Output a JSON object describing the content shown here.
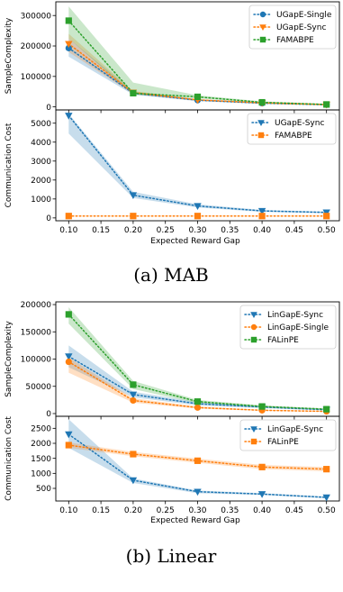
{
  "colors": {
    "blue": "#1f77b4",
    "orange": "#ff7f0e",
    "green": "#2ca02c"
  },
  "figures": [
    {
      "caption": "(a) MAB",
      "xlabel": "Expected Reward Gap",
      "xticks": [
        0.1,
        0.15,
        0.2,
        0.25,
        0.3,
        0.35,
        0.4,
        0.45,
        0.5
      ],
      "xticklabels": [
        "0.10",
        "0.15",
        "0.20",
        "0.25",
        "0.30",
        "0.35",
        "0.40",
        "0.45",
        "0.50"
      ],
      "xlim": [
        0.08,
        0.52
      ]
    },
    {
      "caption": "(b) Linear",
      "xlabel": "Expected Reward Gap",
      "xticks": [
        0.1,
        0.15,
        0.2,
        0.25,
        0.3,
        0.35,
        0.4,
        0.45,
        0.5
      ],
      "xticklabels": [
        "0.10",
        "0.15",
        "0.20",
        "0.25",
        "0.30",
        "0.35",
        "0.40",
        "0.45",
        "0.50"
      ],
      "xlim": [
        0.08,
        0.52
      ]
    }
  ],
  "chart_data": [
    {
      "type": "line",
      "id": "mab-sample",
      "ylabel": "SampleComplexity",
      "ylim": [
        -10000,
        345000
      ],
      "yticks": [
        0,
        100000,
        200000,
        300000
      ],
      "yticklabels": [
        "0",
        "100000",
        "200000",
        "300000"
      ],
      "legend_position": "top-right",
      "x": [
        0.1,
        0.2,
        0.3,
        0.4,
        0.5
      ],
      "series": [
        {
          "name": "UGapE-Single",
          "color": "blue",
          "marker": "circle",
          "values": [
            193000,
            45000,
            22000,
            12000,
            7000
          ],
          "band_low": [
            165000,
            40000,
            19000,
            10000,
            5000
          ],
          "band_high": [
            225000,
            50000,
            25000,
            14000,
            9000
          ]
        },
        {
          "name": "UGapE-Sync",
          "color": "orange",
          "marker": "triangle-down",
          "values": [
            207000,
            47000,
            23000,
            13000,
            7500
          ],
          "band_low": [
            180000,
            42000,
            20000,
            11000,
            5500
          ],
          "band_high": [
            240000,
            52000,
            26000,
            15000,
            9500
          ]
        },
        {
          "name": "FAMABPE",
          "color": "green",
          "marker": "square",
          "values": [
            283000,
            45000,
            33000,
            15000,
            8000
          ],
          "band_low": [
            225000,
            40000,
            28000,
            13000,
            6000
          ],
          "band_high": [
            330000,
            80000,
            38000,
            18000,
            10000
          ]
        }
      ]
    },
    {
      "type": "line",
      "id": "mab-comm",
      "ylabel": "Communication Cost",
      "ylim": [
        -150,
        5700
      ],
      "yticks": [
        0,
        1000,
        2000,
        3000,
        4000,
        5000
      ],
      "yticklabels": [
        "0",
        "1000",
        "2000",
        "3000",
        "4000",
        "5000"
      ],
      "legend_position": "top-right",
      "x": [
        0.1,
        0.2,
        0.3,
        0.4,
        0.5
      ],
      "series": [
        {
          "name": "UGapE-Sync",
          "color": "blue",
          "marker": "triangle-down",
          "values": [
            5400,
            1200,
            630,
            370,
            290
          ],
          "band_low": [
            4450,
            1050,
            550,
            320,
            250
          ],
          "band_high": [
            5500,
            1380,
            720,
            420,
            330
          ]
        },
        {
          "name": "FAMABPE",
          "color": "orange",
          "marker": "square",
          "values": [
            100,
            100,
            100,
            100,
            100
          ],
          "band_low": [
            100,
            100,
            100,
            100,
            100
          ],
          "band_high": [
            100,
            100,
            100,
            100,
            100
          ]
        }
      ]
    },
    {
      "type": "line",
      "id": "lin-sample",
      "ylabel": "SampleComplexity",
      "ylim": [
        -5000,
        205000
      ],
      "yticks": [
        0,
        50000,
        100000,
        150000,
        200000
      ],
      "yticklabels": [
        "0",
        "50000",
        "100000",
        "150000",
        "200000"
      ],
      "legend_position": "top-right",
      "x": [
        0.1,
        0.2,
        0.3,
        0.4,
        0.5
      ],
      "series": [
        {
          "name": "LinGapE-Sync",
          "color": "blue",
          "marker": "triangle-down",
          "values": [
            105000,
            35000,
            18000,
            12000,
            7000
          ],
          "band_low": [
            85000,
            30000,
            15000,
            10000,
            5500
          ],
          "band_high": [
            125000,
            40000,
            21000,
            14000,
            8500
          ]
        },
        {
          "name": "LinGapE-Single",
          "color": "orange",
          "marker": "circle",
          "values": [
            95000,
            24000,
            11000,
            6000,
            4000
          ],
          "band_low": [
            75000,
            20000,
            9000,
            5000,
            3000
          ],
          "band_high": [
            103000,
            28000,
            13000,
            7000,
            5000
          ]
        },
        {
          "name": "FALinPE",
          "color": "green",
          "marker": "square",
          "values": [
            182000,
            53000,
            22000,
            13000,
            8000
          ],
          "band_low": [
            165000,
            45000,
            19000,
            11000,
            6500
          ],
          "band_high": [
            195000,
            60000,
            25000,
            15000,
            9500
          ]
        }
      ]
    },
    {
      "type": "line",
      "id": "lin-comm",
      "ylabel": "Communication Cost",
      "ylim": [
        80,
        2900
      ],
      "yticks": [
        500,
        1000,
        1500,
        2000,
        2500
      ],
      "yticklabels": [
        "500",
        "1000",
        "1500",
        "2000",
        "2500"
      ],
      "legend_position": "top-right",
      "x": [
        0.1,
        0.2,
        0.3,
        0.4,
        0.5
      ],
      "series": [
        {
          "name": "LinGapE-Sync",
          "color": "blue",
          "marker": "triangle-down",
          "values": [
            2300,
            770,
            390,
            310,
            200
          ],
          "band_low": [
            1850,
            680,
            340,
            280,
            170
          ],
          "band_high": [
            2800,
            830,
            430,
            340,
            230
          ]
        },
        {
          "name": "FALinPE",
          "color": "orange",
          "marker": "square",
          "values": [
            1940,
            1640,
            1420,
            1210,
            1140
          ],
          "band_low": [
            1850,
            1570,
            1350,
            1140,
            1070
          ],
          "band_high": [
            2030,
            1710,
            1490,
            1280,
            1210
          ]
        }
      ]
    }
  ]
}
